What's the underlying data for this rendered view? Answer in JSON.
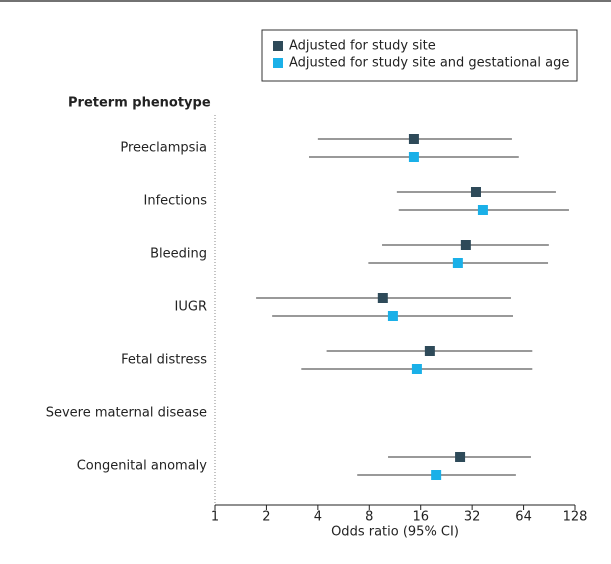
{
  "chart_data": {
    "type": "forest",
    "y_title": "Preterm phenotype",
    "x_label": "Odds ratio (95% CI)",
    "categories": [
      "Preeclampsia",
      "Infections",
      "Bleeding",
      "IUGR",
      "Fetal distress",
      "Severe maternal disease",
      "Congenital anomaly"
    ],
    "series": [
      {
        "name": "Adjusted for study site",
        "color": "#2e4a59",
        "values": [
          14.6,
          33.7,
          29.4,
          9.6,
          18.1,
          null,
          27.2
        ],
        "lower": [
          4.0,
          11.6,
          9.5,
          1.74,
          4.5,
          null,
          10.3
        ],
        "upper": [
          54.7,
          99,
          90,
          54,
          72,
          null,
          70.7
        ]
      },
      {
        "name": "Adjusted for study site and gestational age",
        "color": "#1ab0e8",
        "values": [
          14.6,
          37,
          26.4,
          11,
          15.2,
          null,
          19.7
        ],
        "lower": [
          3.55,
          11.9,
          7.9,
          2.16,
          3.2,
          null,
          6.8
        ],
        "upper": [
          60,
          118,
          89,
          55.5,
          72,
          null,
          57.7
        ]
      }
    ],
    "xscale": "log",
    "xlim": [
      1,
      128
    ],
    "xticks": [
      1,
      2,
      4,
      8,
      16,
      32,
      64,
      128
    ]
  }
}
